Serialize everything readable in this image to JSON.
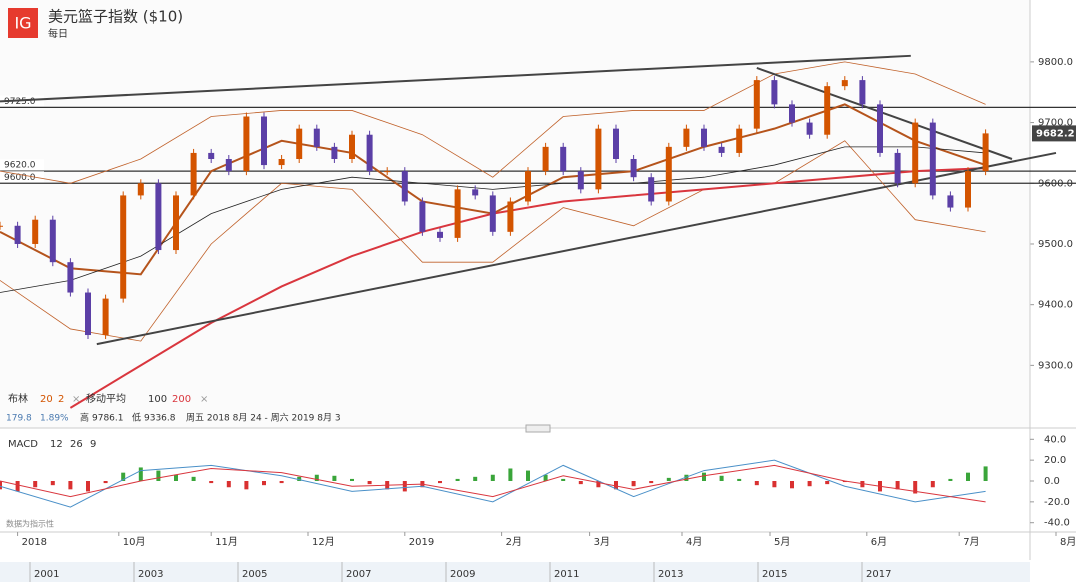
{
  "chart_data": {
    "type": "candlestick",
    "title": "美元篮子指数 ($10)",
    "subtitle": "每日",
    "logo": "IG",
    "x": [
      0,
      4,
      8,
      12,
      16,
      20,
      24,
      28,
      32,
      36,
      40,
      44,
      48,
      52,
      56,
      60,
      64,
      68,
      72,
      76,
      80,
      84,
      88,
      92,
      96,
      100,
      104,
      108,
      112,
      116,
      120,
      124,
      128,
      132,
      136,
      140,
      144,
      148,
      152,
      156,
      160,
      164,
      168,
      172,
      176,
      180,
      184,
      188,
      192,
      196,
      200,
      204,
      208,
      212,
      216,
      220,
      224
    ],
    "values": [
      9530,
      9500,
      9540,
      9470,
      9420,
      9350,
      9410,
      9580,
      9600,
      9490,
      9580,
      9650,
      9640,
      9620,
      9710,
      9630,
      9640,
      9690,
      9660,
      9640,
      9680,
      9620,
      9620,
      9570,
      9520,
      9510,
      9590,
      9580,
      9520,
      9570,
      9620,
      9660,
      9620,
      9590,
      9690,
      9640,
      9610,
      9570,
      9660,
      9690,
      9660,
      9650,
      9690,
      9770,
      9730,
      9700,
      9680,
      9760,
      9770,
      9730,
      9650,
      9600,
      9700,
      9580,
      9560,
      9620,
      9682.2
    ],
    "up_color": "#d35400",
    "down_color": "#5b3fa6",
    "xlim": [
      0,
      240
    ],
    "xticks": [
      {
        "value": 4,
        "label": "2018"
      },
      {
        "value": 27,
        "label": "10月"
      },
      {
        "value": 48,
        "label": "11月"
      },
      {
        "value": 70,
        "label": "12月"
      },
      {
        "value": 92,
        "label": "2019"
      },
      {
        "value": 114,
        "label": "2月"
      },
      {
        "value": 134,
        "label": "3月"
      },
      {
        "value": 155,
        "label": "4月"
      },
      {
        "value": 175,
        "label": "5月"
      },
      {
        "value": 197,
        "label": "6月"
      },
      {
        "value": 218,
        "label": "7月"
      },
      {
        "value": 240,
        "label": "8月"
      }
    ],
    "ylim": [
      9210,
      9869
    ],
    "yticks": [
      {
        "value": 9800,
        "label": "9800.0"
      },
      {
        "value": 9700,
        "label": "9700.0"
      },
      {
        "value": 9600,
        "label": "9600.0"
      },
      {
        "value": 9500,
        "label": "9500.0"
      },
      {
        "value": 9400,
        "label": "9400.0"
      },
      {
        "value": 9300,
        "label": "9300.0"
      }
    ],
    "last_price": {
      "value": 9682.2,
      "label": "9682.2"
    },
    "levels": [
      {
        "value": 9725,
        "label": "9725.0"
      },
      {
        "value": 9620,
        "label": "9620.0"
      },
      {
        "value": 9600,
        "label": "9600.0"
      }
    ],
    "overlays": {
      "x": [
        0,
        16,
        32,
        48,
        64,
        80,
        96,
        112,
        128,
        144,
        160,
        176,
        192,
        208,
        224
      ],
      "series": [
        {
          "color": "#c0612a",
          "width": 0.8,
          "values": [
            9620,
            9600,
            9640,
            9710,
            9720,
            9720,
            9680,
            9610,
            9710,
            9720,
            9720,
            9780,
            9800,
            9780,
            9730
          ]
        },
        {
          "color": "#c0612a",
          "width": 0.8,
          "values": [
            9440,
            9360,
            9340,
            9500,
            9600,
            9590,
            9470,
            9470,
            9560,
            9530,
            9590,
            9600,
            9670,
            9540,
            9520
          ]
        },
        {
          "color": "#b5541c",
          "width": 2,
          "values": [
            9520,
            9460,
            9450,
            9620,
            9670,
            9650,
            9570,
            9550,
            9610,
            9620,
            9660,
            9690,
            9730,
            9670,
            9630
          ]
        },
        {
          "color": "#222222",
          "width": 0.8,
          "values": [
            9420,
            9440,
            9480,
            9550,
            9590,
            9610,
            9600,
            9590,
            9600,
            9600,
            9610,
            9630,
            9660,
            9660,
            9650
          ]
        },
        {
          "color": "#d9363e",
          "width": 2,
          "values": [
            null,
            9230,
            9300,
            9370,
            9430,
            9480,
            9520,
            9550,
            9570,
            9580,
            9590,
            9600,
            9610,
            9620,
            9625
          ]
        }
      ]
    },
    "trendlines": [
      {
        "x": [
          0,
          207
        ],
        "values": [
          9735,
          9810
        ]
      },
      {
        "x": [
          172,
          230
        ],
        "values": [
          9790,
          9640
        ]
      },
      {
        "x": [
          22,
          240
        ],
        "values": [
          9335,
          9650
        ]
      }
    ],
    "legend": {
      "bb": "布林",
      "bb_period": "20",
      "bb_dev": "2",
      "ma": "移动平均",
      "ma_a": "100",
      "ma_b": "200",
      "close": "×",
      "change": "179.8",
      "change_pct": "1.89%",
      "high_label": "高",
      "high": "9786.1",
      "low_label": "低",
      "low": "9336.8",
      "range": "周五 2018 8月 24 - 周六 2019 8月 3"
    },
    "macd": {
      "label": "MACD",
      "fast": "12",
      "slow": "26",
      "signal": "9",
      "ylim": [
        -47,
        47
      ],
      "yticks": [
        {
          "value": 40,
          "label": "40.0"
        },
        {
          "value": 20,
          "label": "20.0"
        },
        {
          "value": 0,
          "label": "0.0"
        },
        {
          "value": -20,
          "label": "-20.0"
        },
        {
          "value": -40,
          "label": "-40.0"
        }
      ],
      "histogram": [
        -8,
        -10,
        -6,
        -4,
        -8,
        -10,
        -2,
        8,
        13,
        10,
        6,
        4,
        -2,
        -6,
        -8,
        -4,
        -2,
        4,
        6,
        5,
        2,
        -3,
        -8,
        -10,
        -6,
        -2,
        2,
        4,
        6,
        12,
        10,
        6,
        2,
        -3,
        -6,
        -8,
        -5,
        -2,
        3,
        6,
        8,
        5,
        2,
        -4,
        -6,
        -7,
        -5,
        -3,
        -1,
        -6,
        -10,
        -8,
        -12,
        -6,
        2,
        8,
        14
      ],
      "pos_color": "#3aa53a",
      "neg_color": "#d93030",
      "line": {
        "color": "#4a90c8",
        "values": [
          -5,
          -25,
          10,
          15,
          5,
          -10,
          -5,
          -20,
          15,
          -15,
          10,
          20,
          -5,
          -20,
          -10
        ]
      },
      "signal_line": {
        "color": "#d9363e",
        "values": [
          0,
          -15,
          0,
          12,
          8,
          -5,
          -3,
          -15,
          5,
          -8,
          5,
          15,
          0,
          -10,
          -20
        ]
      }
    },
    "note": "数据为指示性",
    "navigator": [
      "2001",
      "2003",
      "2005",
      "2007",
      "2009",
      "2011",
      "2013",
      "2015",
      "2017"
    ]
  }
}
